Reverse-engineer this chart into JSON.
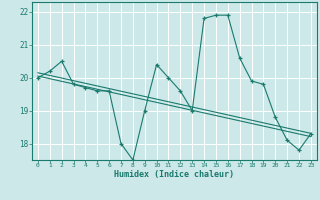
{
  "xlabel": "Humidex (Indice chaleur)",
  "bg_color": "#cce8e8",
  "grid_color": "#ffffff",
  "line_color": "#1a7a6e",
  "x_data": [
    0,
    1,
    2,
    3,
    4,
    5,
    6,
    7,
    8,
    9,
    10,
    11,
    12,
    13,
    14,
    15,
    16,
    17,
    18,
    19,
    20,
    21,
    22,
    23
  ],
  "y_main": [
    20.0,
    20.2,
    20.5,
    19.8,
    19.7,
    19.6,
    19.6,
    18.0,
    17.5,
    19.0,
    20.4,
    20.0,
    19.6,
    19.0,
    21.8,
    21.9,
    21.9,
    20.6,
    19.9,
    19.8,
    18.8,
    18.1,
    17.8,
    18.3
  ],
  "y_trend1": [
    20.05,
    19.97,
    19.89,
    19.81,
    19.73,
    19.65,
    19.57,
    19.49,
    19.41,
    19.33,
    19.25,
    19.17,
    19.09,
    19.01,
    18.93,
    18.85,
    18.77,
    18.69,
    18.61,
    18.53,
    18.45,
    18.37,
    18.29,
    18.21
  ],
  "y_trend2": [
    20.15,
    20.07,
    19.99,
    19.91,
    19.83,
    19.75,
    19.67,
    19.59,
    19.51,
    19.43,
    19.35,
    19.27,
    19.19,
    19.11,
    19.03,
    18.95,
    18.87,
    18.79,
    18.71,
    18.63,
    18.55,
    18.47,
    18.39,
    18.31
  ],
  "ylim": [
    17.5,
    22.3
  ],
  "xlim": [
    -0.5,
    23.5
  ],
  "yticks": [
    18,
    19,
    20,
    21,
    22
  ],
  "xticks": [
    0,
    1,
    2,
    3,
    4,
    5,
    6,
    7,
    8,
    9,
    10,
    11,
    12,
    13,
    14,
    15,
    16,
    17,
    18,
    19,
    20,
    21,
    22,
    23
  ]
}
